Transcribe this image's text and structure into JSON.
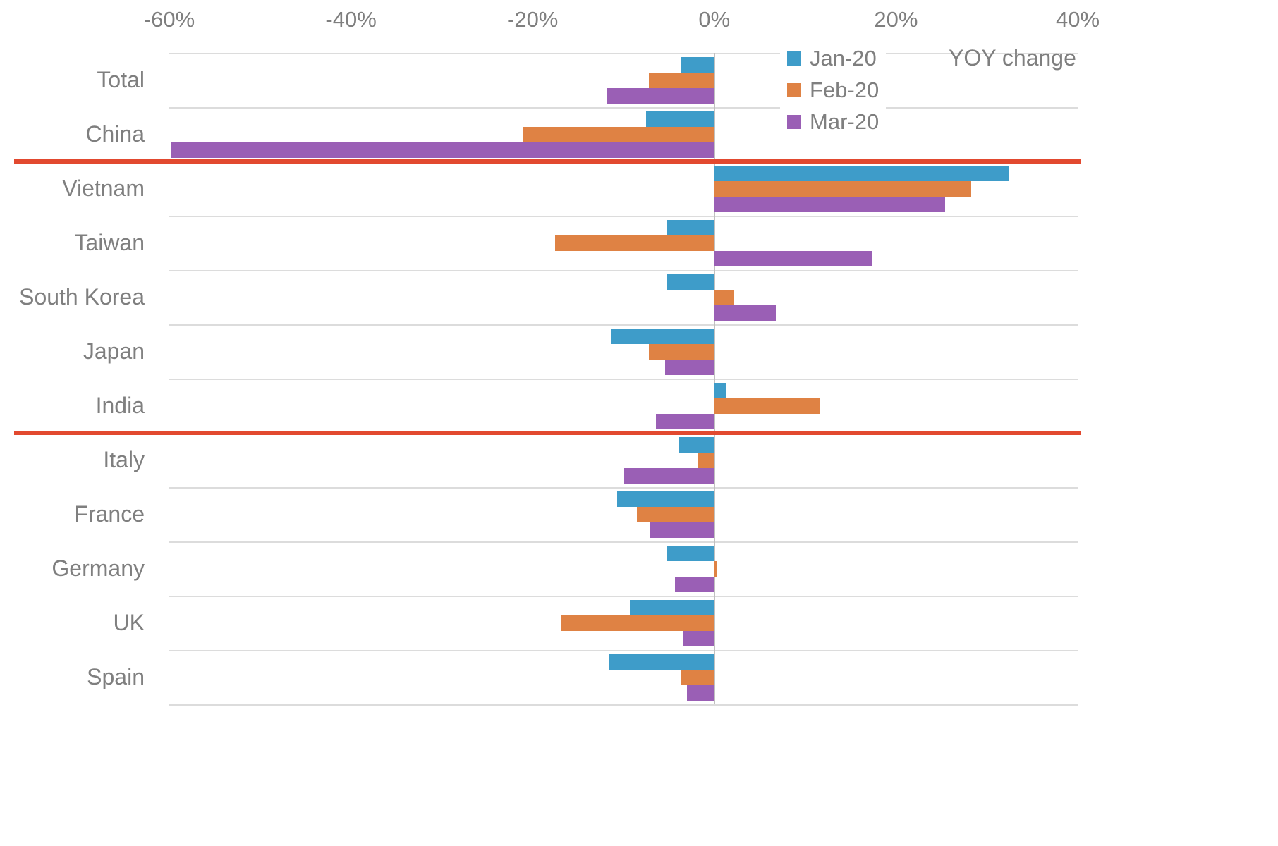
{
  "chart_data": {
    "type": "bar",
    "orientation": "horizontal",
    "annotation": "YOY change",
    "x_axis": {
      "min": -60,
      "max": 40,
      "ticks": [
        -60,
        -40,
        -20,
        0,
        20,
        40
      ],
      "tick_labels": [
        "-60%",
        "-40%",
        "-20%",
        "0%",
        "20%",
        "40%"
      ],
      "unit": "%"
    },
    "categories": [
      "Total",
      "China",
      "Vietnam",
      "Taiwan",
      "South Korea",
      "Japan",
      "India",
      "Italy",
      "France",
      "Germany",
      "UK",
      "Spain"
    ],
    "series": [
      {
        "name": "Jan-20",
        "color": "#3E9CC9",
        "values": [
          -3.7,
          -7.5,
          32.5,
          -5.3,
          -5.3,
          -11.4,
          1.3,
          -3.9,
          -10.7,
          -5.3,
          -9.3,
          -11.6
        ]
      },
      {
        "name": "Feb-20",
        "color": "#DF8244",
        "values": [
          -7.2,
          -21.0,
          28.3,
          -17.5,
          2.1,
          -7.2,
          11.6,
          -1.8,
          -8.5,
          0.3,
          -16.8,
          -3.7
        ]
      },
      {
        "name": "Mar-20",
        "color": "#9A5FB5",
        "values": [
          -11.9,
          -59.8,
          25.4,
          17.4,
          6.8,
          -5.4,
          -6.4,
          -9.9,
          -7.1,
          -4.3,
          -3.5,
          -3.0
        ]
      }
    ],
    "separators": {
      "color": "#E2492F",
      "after_categories": [
        "China",
        "India"
      ]
    },
    "legend": {
      "position": "top-right"
    },
    "style_colors": {
      "grid": "#DCDCDC",
      "axis_text": "#7F7F7F",
      "zero_line": "#C0C0C0"
    }
  }
}
